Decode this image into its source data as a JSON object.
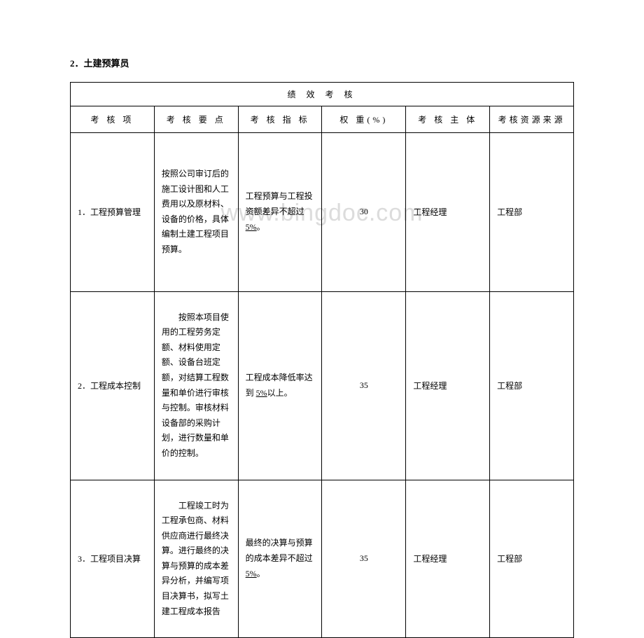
{
  "section_title": "2．土建预算员",
  "watermark": "www.bingdoc.com",
  "table": {
    "main_header": "绩 效 考 核",
    "columns": {
      "item": "考 核 项",
      "points": "考 核 要 点",
      "indicator": "考 核 指 标",
      "weight": "权 重(%)",
      "subject": "考 核 主 体",
      "resource": "考核资源来源"
    },
    "rows": [
      {
        "item": "1．工程预算管理",
        "points": "按照公司审订后的施工设计图和人工费用以及原材料、设备的价格，具体编制土建工程项目预算。",
        "indicator_pre": "工程预算与工程投资额差异不超过 ",
        "indicator_underline": "5%",
        "indicator_post": "。",
        "weight": "30",
        "subject": "工程经理",
        "resource": "工程部"
      },
      {
        "item": "2．工程成本控制",
        "points": "按照本项目使用的工程劳务定额、材料使用定额、设备台班定额，对结算工程数量和单价进行审核与控制。审核材料设备部的采购计划，进行数量和单价的控制。",
        "indicator_pre": "工程成本降低率达到 ",
        "indicator_underline": "5%",
        "indicator_post": "以上。",
        "weight": "35",
        "subject": "工程经理",
        "resource": "工程部"
      },
      {
        "item": "3．工程项目决算",
        "points": "工程竣工时为工程承包商、材料供应商进行最终决算。进行最终的决算与预算的成本差异分析，并编写项目决算书，拟写土建工程成本报告",
        "indicator_pre": "最终的决算与预算的成本差异不超过 ",
        "indicator_underline": "5%",
        "indicator_post": "。",
        "weight": "35",
        "subject": "工程经理",
        "resource": "工程部"
      }
    ]
  }
}
